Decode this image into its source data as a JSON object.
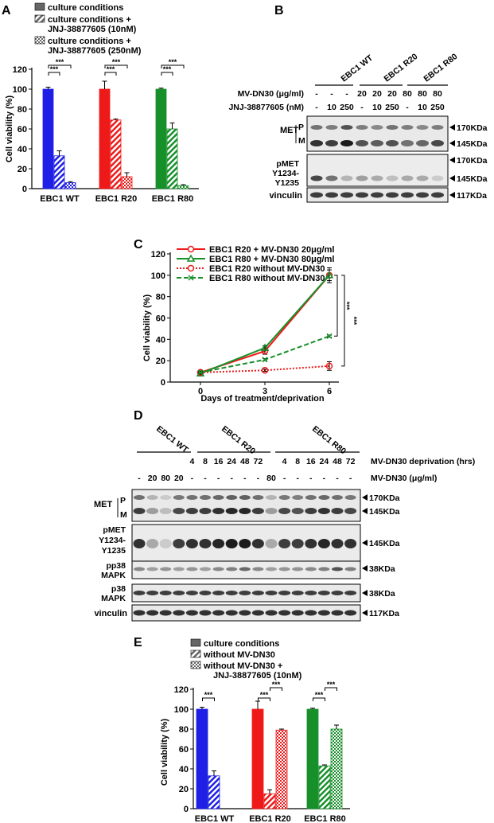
{
  "panels": {
    "A": "A",
    "B": "B",
    "C": "C",
    "D": "D",
    "E": "E"
  },
  "colors": {
    "wt": "#1f1fe6",
    "r20": "#ee1a1a",
    "r80": "#17902a",
    "gray": "#666666"
  },
  "chart_data": [
    {
      "id": "A",
      "type": "bar",
      "ylabel": "Cell viability (%)",
      "ylim": [
        0,
        120
      ],
      "yticks": [
        "0",
        "20",
        "40",
        "60",
        "80",
        "100",
        "120"
      ],
      "categories": [
        "EBC1 WT",
        "EBC1 R20",
        "EBC1 R80"
      ],
      "legend": [
        "culture conditions",
        "culture conditions + JNJ-38877605 (10nM)",
        "culture conditions + JNJ-38877605 (250nM)"
      ],
      "series": [
        {
          "name": "culture conditions",
          "values": [
            100,
            100,
            100
          ],
          "err": [
            2,
            8,
            1
          ]
        },
        {
          "name": "culture conditions + JNJ-38877605 (10nM)",
          "values": [
            33,
            69,
            60
          ],
          "err": [
            5,
            1,
            6
          ]
        },
        {
          "name": "culture conditions + JNJ-38877605 (250nM)",
          "values": [
            6,
            12,
            3
          ],
          "err": [
            1,
            4,
            1
          ]
        }
      ],
      "sig": "***"
    },
    {
      "id": "C",
      "type": "line",
      "ylabel": "Cell viability (%)",
      "xlabel": "Days of treatment/deprivation",
      "x": [
        0,
        3,
        6
      ],
      "ylim": [
        0,
        120
      ],
      "yticks": [
        "0",
        "20",
        "40",
        "60",
        "80",
        "100",
        "120"
      ],
      "xticks": [
        "0",
        "3",
        "6"
      ],
      "series": [
        {
          "name": "EBC1 R20 + MV-DN30 20μg/ml",
          "values": [
            9,
            29,
            100
          ],
          "err": [
            2,
            3,
            7
          ]
        },
        {
          "name": "EBC1 R80 + MV-DN30 80μg/ml",
          "values": [
            8,
            32,
            100
          ],
          "err": [
            1,
            2,
            5
          ]
        },
        {
          "name": "EBC1 R20 without MV-DN30",
          "values": [
            9,
            11,
            15
          ],
          "err": [
            1,
            1,
            4
          ]
        },
        {
          "name": "EBC1 R80 without MV-DN30",
          "values": [
            9,
            21,
            43
          ],
          "err": [
            1,
            1,
            1
          ]
        }
      ],
      "sig": "***"
    },
    {
      "id": "E",
      "type": "bar",
      "ylabel": "Cell viability (%)",
      "ylim": [
        0,
        120
      ],
      "yticks": [
        "0",
        "20",
        "40",
        "60",
        "80",
        "100",
        "120"
      ],
      "categories": [
        "EBC1 WT",
        "EBC1 R20",
        "EBC1 R80"
      ],
      "legend": [
        "culture conditions",
        "without MV-DN30",
        "without MV-DN30 + JNJ-38877605 (10nM)"
      ],
      "series": [
        {
          "name": "culture conditions",
          "values": [
            100,
            100,
            100
          ],
          "err": [
            2,
            8,
            1
          ]
        },
        {
          "name": "without MV-DN30",
          "values": [
            33,
            15,
            43
          ],
          "err": [
            5,
            4,
            1
          ]
        },
        {
          "name": "without MV-DN30 + JNJ-38877605 (10nM)",
          "values": [
            null,
            79,
            80
          ],
          "err": [
            0,
            1,
            4
          ]
        }
      ],
      "sig": "***"
    }
  ],
  "blotB": {
    "groups": [
      "EBC1 WT",
      "EBC1 R20",
      "EBC1 R80"
    ],
    "row1_label": "MV-DN30 (μg/ml)",
    "row1": [
      "-",
      "-",
      "-",
      "20",
      "20",
      "20",
      "80",
      "80",
      "80"
    ],
    "row2_label": "JNJ-38877605 (nM)",
    "row2": [
      "-",
      "10",
      "250",
      "-",
      "10",
      "250",
      "-",
      "10",
      "250"
    ],
    "met": "MET",
    "p": "P",
    "m": "M",
    "pmet": [
      "pMET",
      "Y1234-",
      "Y1235"
    ],
    "vinculin": "vinculin",
    "kda": [
      "170KDa",
      "145KDa",
      "170KDa",
      "145KDa",
      "117KDa"
    ]
  },
  "blotD": {
    "groups": [
      "EBC1 WT",
      "EBC1 R20",
      "EBC1 R80"
    ],
    "row1_label": "MV-DN30 deprivation (hrs)",
    "row1": [
      "",
      "",
      "",
      "",
      "4",
      "8",
      "16",
      "24",
      "48",
      "72",
      "",
      "4",
      "8",
      "16",
      "24",
      "48",
      "72"
    ],
    "row2_label": "MV-DN30 (μg/ml)",
    "row2": [
      "-",
      "20",
      "80",
      "20",
      "-",
      "-",
      "-",
      "-",
      "-",
      "-",
      "80",
      "-",
      "-",
      "-",
      "-",
      "-",
      "-"
    ],
    "labels": [
      "MET",
      "pMET",
      "Y1234-",
      "Y1235",
      "pp38",
      "MAPK",
      "p38",
      "MAPK",
      "vinculin"
    ],
    "p": "P",
    "m": "M",
    "kda": [
      "170KDa",
      "145KDa",
      "145KDa",
      "38KDa",
      "38KDa",
      "117KDa"
    ]
  }
}
